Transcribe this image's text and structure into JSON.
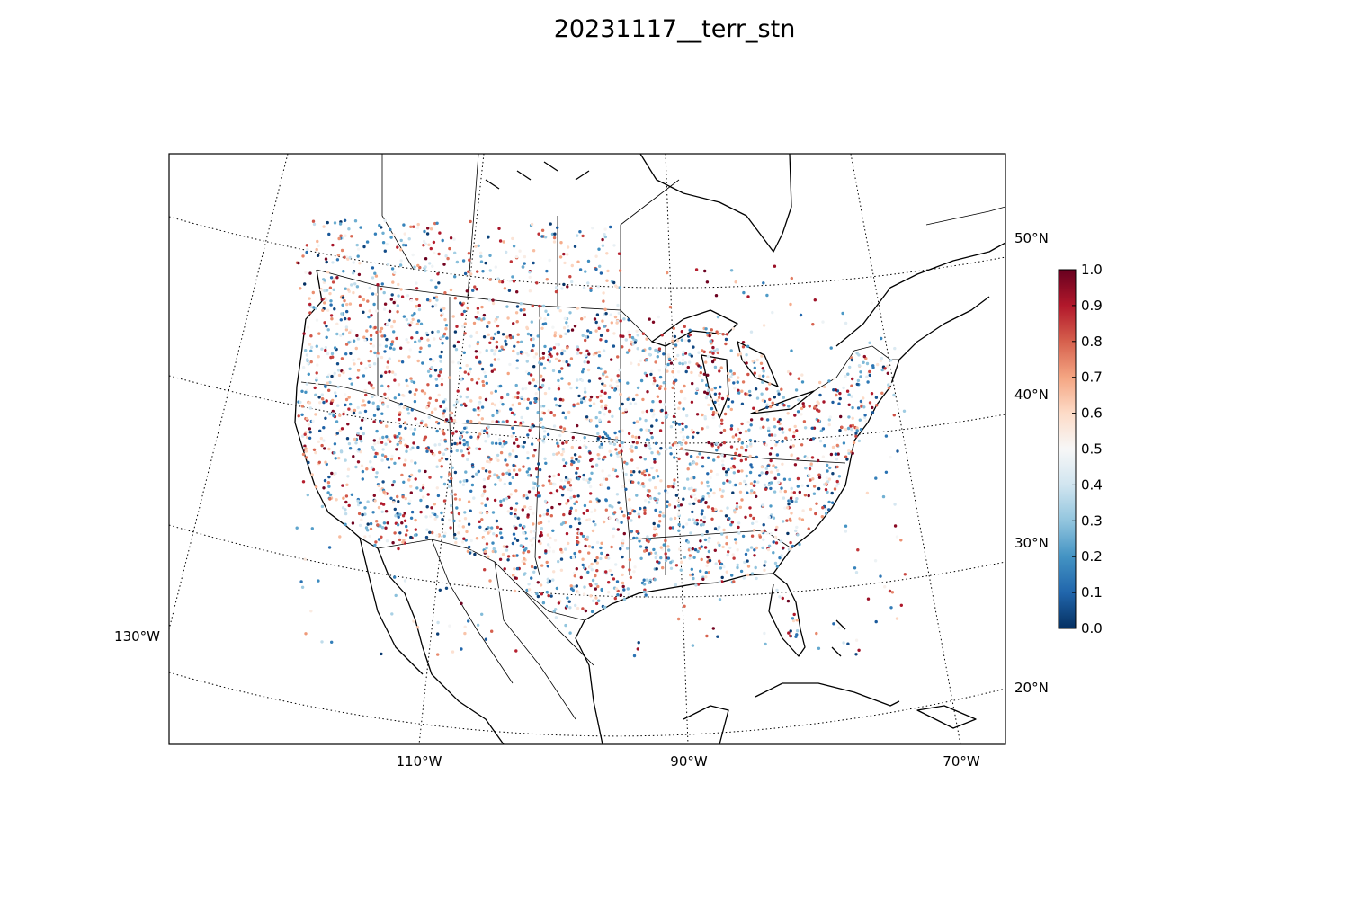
{
  "title": "20231117__terr_stn",
  "lat_labels": [
    "50°N",
    "40°N",
    "30°N",
    "20°N"
  ],
  "lon_labels_bottom": [
    "110°W",
    "90°W",
    "70°W"
  ],
  "lon_label_left": "130°W",
  "colorbar": {
    "ticks": [
      "0.0",
      "0.1",
      "0.2",
      "0.3",
      "0.4",
      "0.5",
      "0.6",
      "0.7",
      "0.8",
      "0.9",
      "1.0"
    ],
    "range": [
      0.0,
      1.0
    ],
    "colormap": "RdBu_r",
    "stops": [
      "#053061",
      "#2166ac",
      "#4393c3",
      "#92c5de",
      "#d1e5f0",
      "#f7f7f7",
      "#fddbc7",
      "#f4a582",
      "#d6604d",
      "#b2182b",
      "#67001f"
    ]
  },
  "map": {
    "projection": "lambert-conformal",
    "extent_deg": {
      "lon_min": -126,
      "lon_max": -66,
      "lat_min": 14,
      "lat_max": 57
    },
    "graticule": {
      "lat_step": 10,
      "lon_step": 20,
      "style": "dotted"
    },
    "features": [
      "coastlines",
      "country-borders",
      "state-borders"
    ],
    "marker": "station-point"
  }
}
